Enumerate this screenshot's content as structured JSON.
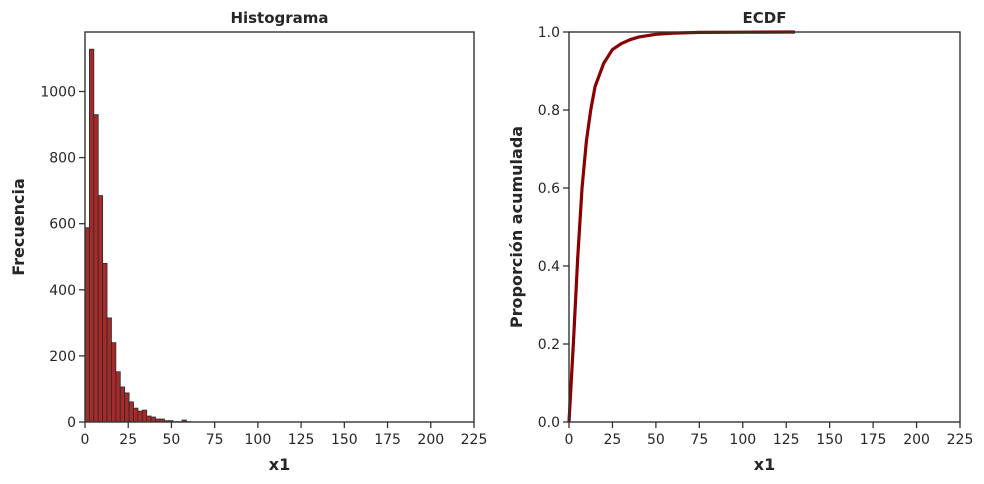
{
  "chart_data": [
    {
      "type": "bar",
      "title": "Histograma",
      "xlabel": "x1",
      "ylabel": "Frecuencia",
      "xlim": [
        0,
        225
      ],
      "ylim": [
        0,
        1180
      ],
      "xticks": [
        0,
        25,
        50,
        75,
        100,
        125,
        150,
        175,
        200,
        225
      ],
      "yticks": [
        0,
        200,
        400,
        600,
        800,
        1000
      ],
      "bin_start": 0,
      "bin_width": 2.55,
      "values": [
        588,
        1128,
        930,
        685,
        480,
        315,
        240,
        152,
        106,
        88,
        61,
        42,
        33,
        36,
        18,
        15,
        9,
        9,
        4,
        4,
        1,
        1,
        6,
        1
      ],
      "color": "#a52a2a",
      "edgecolor": "#2b2b2b",
      "grid": false
    },
    {
      "type": "line",
      "title": "ECDF",
      "xlabel": "x1",
      "ylabel": "Proporción acumulada",
      "xlim": [
        0,
        225
      ],
      "ylim": [
        0,
        1.0
      ],
      "xticks": [
        0,
        25,
        50,
        75,
        100,
        125,
        150,
        175,
        200,
        225
      ],
      "yticks": [
        0.0,
        0.2,
        0.4,
        0.6,
        0.8,
        1.0
      ],
      "ytick_labels": [
        "0.0",
        "0.2",
        "0.4",
        "0.6",
        "0.8",
        "1.0"
      ],
      "x": [
        0,
        2.5,
        5,
        7.5,
        10,
        12.5,
        15,
        20,
        25,
        30,
        35,
        40,
        50,
        60,
        75,
        100,
        130
      ],
      "y": [
        0.0,
        0.2,
        0.42,
        0.6,
        0.72,
        0.8,
        0.86,
        0.92,
        0.955,
        0.97,
        0.98,
        0.987,
        0.994,
        0.997,
        0.999,
        0.9995,
        1.0
      ],
      "color": "#8b0000",
      "grid": false
    }
  ]
}
